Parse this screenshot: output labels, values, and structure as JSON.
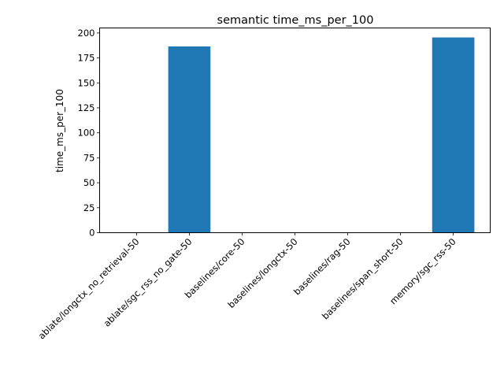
{
  "chart_data": {
    "type": "bar",
    "title": "semantic time_ms_per_100",
    "xlabel": "",
    "ylabel": "time_ms_per_100",
    "categories": [
      "ablate/longctx_no_retrieval-50",
      "ablate/sgc_rss_no_gate-50",
      "baselines/core-50",
      "baselines/longctx-50",
      "baselines/rag-50",
      "baselines/span_short-50",
      "memory/sgc_rss-50"
    ],
    "values": [
      0,
      186.5,
      0,
      0,
      0,
      0,
      195.5
    ],
    "ylim": [
      0,
      205
    ],
    "yticks": [
      0,
      25,
      50,
      75,
      100,
      125,
      150,
      175,
      200
    ],
    "grid": false,
    "bar_color": "#1f77b4"
  }
}
